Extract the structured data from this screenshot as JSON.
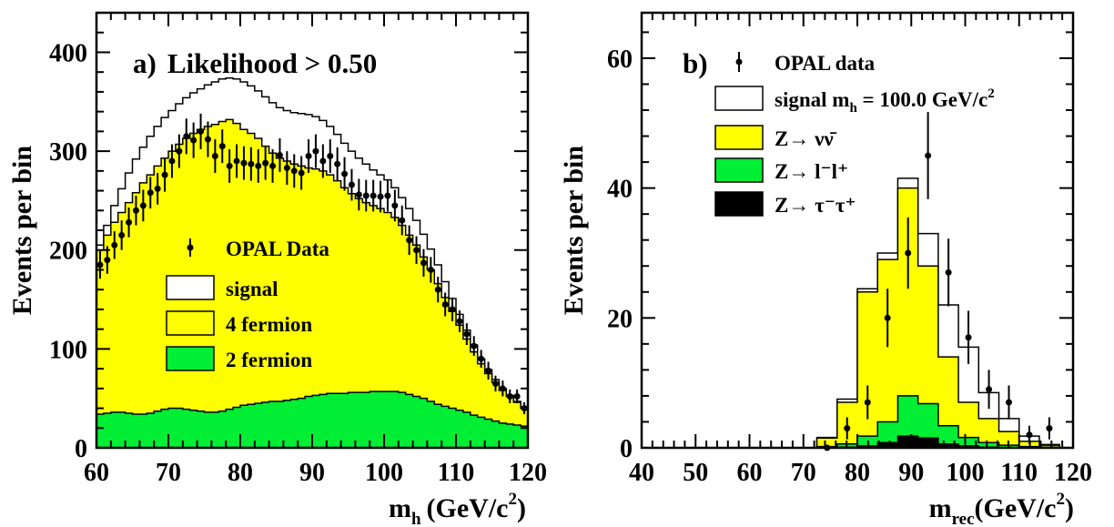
{
  "chart_data": [
    {
      "type": "histogram",
      "panel_label": "a)",
      "title": "Likelihood > 0.50",
      "xlabel": "m",
      "xlabel_sub": "h",
      "xlabel_unit": "(GeV/c",
      "xlabel_sup": "2",
      "xlabel_close": ")",
      "ylabel": "Events per bin",
      "xlim": [
        60,
        120
      ],
      "ylim": [
        0,
        440
      ],
      "xticks": [
        60,
        70,
        80,
        90,
        100,
        110,
        120
      ],
      "xtick_labels": [
        "60",
        "70",
        "80",
        "90",
        "100",
        "110",
        "120"
      ],
      "yticks": [
        0,
        100,
        200,
        300,
        400
      ],
      "ytick_labels": [
        "0",
        "100",
        "200",
        "300",
        "400"
      ],
      "legend": {
        "placement": "center-left",
        "data_label": "OPAL Data",
        "entries": [
          {
            "label": "signal",
            "color": "#ffffff"
          },
          {
            "label": "4 fermion",
            "color": "#ffff00"
          },
          {
            "label": "2 fermion",
            "color": "#00ee33"
          }
        ]
      },
      "bin_edges_x": [
        60,
        61,
        62,
        63,
        64,
        65,
        66,
        67,
        68,
        69,
        70,
        71,
        72,
        73,
        74,
        75,
        76,
        77,
        78,
        79,
        80,
        81,
        82,
        83,
        84,
        85,
        86,
        87,
        88,
        89,
        90,
        91,
        92,
        93,
        94,
        95,
        96,
        97,
        98,
        99,
        100,
        101,
        102,
        103,
        104,
        105,
        106,
        107,
        108,
        109,
        110,
        111,
        112,
        113,
        114,
        115,
        116,
        117,
        118,
        119,
        120
      ],
      "series": [
        {
          "name": "2 fermion",
          "style": "filled-step",
          "color": "#00ee33",
          "values": [
            34,
            35,
            36,
            36,
            35,
            34,
            34,
            35,
            37,
            39,
            40,
            40,
            39,
            38,
            37,
            36,
            36,
            37,
            39,
            41,
            43,
            44,
            45,
            46,
            47,
            47,
            48,
            49,
            50,
            52,
            53,
            54,
            55,
            55,
            55,
            56,
            56,
            56,
            57,
            57,
            57,
            57,
            56,
            54,
            52,
            50,
            47,
            44,
            42,
            40,
            38,
            36,
            33,
            31,
            29,
            27,
            25,
            24,
            23,
            22
          ]
        },
        {
          "name": "4 fermion",
          "style": "filled-step-cumulative",
          "color": "#ffff00",
          "values": [
            200,
            215,
            228,
            238,
            248,
            258,
            268,
            276,
            285,
            293,
            300,
            307,
            313,
            318,
            322,
            325,
            327,
            330,
            332,
            328,
            322,
            318,
            313,
            305,
            298,
            293,
            290,
            287,
            285,
            283,
            282,
            280,
            276,
            270,
            263,
            257,
            252,
            248,
            245,
            242,
            238,
            233,
            225,
            215,
            205,
            193,
            180,
            166,
            152,
            138,
            124,
            110,
            97,
            85,
            75,
            66,
            58,
            52,
            46,
            40
          ]
        },
        {
          "name": "signal",
          "style": "open-step-cumulative",
          "color": "#ffffff",
          "values": [
            205,
            225,
            245,
            262,
            278,
            292,
            304,
            315,
            325,
            334,
            341,
            348,
            354,
            359,
            363,
            367,
            370,
            373,
            374,
            373,
            370,
            366,
            361,
            355,
            349,
            344,
            341,
            339,
            338,
            337,
            335,
            331,
            325,
            317,
            308,
            300,
            293,
            287,
            281,
            276,
            271,
            263,
            253,
            242,
            230,
            216,
            201,
            185,
            168,
            151,
            135,
            119,
            104,
            90,
            79,
            69,
            60,
            53,
            47,
            41
          ]
        }
      ],
      "data_points": {
        "name": "OPAL Data",
        "x": [
          60.5,
          61.5,
          62.5,
          63.5,
          64.5,
          65.5,
          66.5,
          67.5,
          68.5,
          69.5,
          70.5,
          71.5,
          72.5,
          73.5,
          74.5,
          75.5,
          76.5,
          77.5,
          78.5,
          79.5,
          80.5,
          81.5,
          82.5,
          83.5,
          84.5,
          85.5,
          86.5,
          87.5,
          88.5,
          89.5,
          90.5,
          91.5,
          92.5,
          93.5,
          94.5,
          95.5,
          96.5,
          97.5,
          98.5,
          99.5,
          100.5,
          101.5,
          102.5,
          103.5,
          104.5,
          105.5,
          106.5,
          107.5,
          108.5,
          109.5,
          110.5,
          111.5,
          112.5,
          113.5,
          114.5,
          115.5,
          116.5,
          117.5,
          118.5,
          119.5
        ],
        "y": [
          185,
          190,
          205,
          215,
          228,
          240,
          245,
          258,
          262,
          276,
          290,
          300,
          315,
          311,
          320,
          312,
          295,
          305,
          285,
          290,
          288,
          287,
          285,
          288,
          285,
          296,
          283,
          280,
          278,
          295,
          300,
          290,
          295,
          287,
          277,
          266,
          256,
          255,
          255,
          254,
          255,
          245,
          230,
          210,
          200,
          187,
          180,
          160,
          145,
          140,
          128,
          115,
          103,
          90,
          78,
          65,
          60,
          52,
          52,
          40
        ],
        "yerr": [
          14,
          14,
          14,
          15,
          15,
          15,
          16,
          16,
          16,
          17,
          17,
          17,
          18,
          18,
          18,
          18,
          17,
          17,
          17,
          17,
          17,
          17,
          17,
          17,
          17,
          17,
          17,
          17,
          17,
          17,
          17,
          17,
          17,
          17,
          17,
          16,
          16,
          16,
          16,
          16,
          16,
          16,
          15,
          15,
          14,
          14,
          13,
          13,
          12,
          12,
          11,
          11,
          10,
          9,
          9,
          8,
          8,
          7,
          7,
          6
        ]
      }
    },
    {
      "type": "histogram",
      "panel_label": "b)",
      "title": "",
      "xlabel": "m",
      "xlabel_sub": "rec",
      "xlabel_unit": "(GeV/c",
      "xlabel_sup": "2",
      "xlabel_close": ")",
      "ylabel": "Events per bin",
      "xlim": [
        40,
        120
      ],
      "ylim": [
        0,
        67
      ],
      "xticks": [
        40,
        50,
        60,
        70,
        80,
        90,
        100,
        110,
        120
      ],
      "xtick_labels": [
        "40",
        "50",
        "60",
        "70",
        "80",
        "90",
        "100",
        "110",
        "120"
      ],
      "yticks": [
        0,
        20,
        40,
        60
      ],
      "ytick_labels": [
        "0",
        "20",
        "40",
        "60"
      ],
      "legend": {
        "placement": "top-right",
        "data_label": "OPAL data",
        "entries": [
          {
            "label": "signal m",
            "label_sub": "h",
            "label_rest": " = 100.0 GeV/c",
            "label_sup": "2",
            "color": "#ffffff"
          },
          {
            "label": "Z→ νν̄",
            "color": "#ffff00"
          },
          {
            "label": "Z→ l⁻l⁺",
            "color": "#00ee33"
          },
          {
            "label": "Z→ τ⁻τ⁺",
            "color": "#000000"
          }
        ]
      },
      "bin_edges_x": [
        72.5,
        76.25,
        80,
        83.75,
        87.5,
        91.25,
        95,
        98.75,
        102.5,
        106.25,
        110,
        113.75,
        117.5
      ],
      "series": [
        {
          "name": "Z→ τ⁻τ⁺",
          "style": "filled-step",
          "color": "#000000",
          "values": [
            0.0,
            0.1,
            0.3,
            0.8,
            1.8,
            1.5,
            0.6,
            0.3,
            0.1,
            0.0,
            0.0,
            0.0
          ]
        },
        {
          "name": "Z→ l⁻l⁺",
          "style": "filled-step-cumulative",
          "color": "#00ee33",
          "values": [
            0.2,
            0.6,
            1.8,
            4.0,
            8.0,
            6.8,
            3.4,
            1.6,
            0.8,
            0.4,
            0.2,
            0.1
          ]
        },
        {
          "name": "Z→ νν̄",
          "style": "filled-step-cumulative",
          "color": "#ffff00",
          "values": [
            1.5,
            7.0,
            24.0,
            29.0,
            40.0,
            28.0,
            14.0,
            7.0,
            4.5,
            2.5,
            1.0,
            0.4
          ]
        },
        {
          "name": "signal",
          "style": "open-step-cumulative",
          "color": "#ffffff",
          "values": [
            1.6,
            7.5,
            24.5,
            30.0,
            41.5,
            33.0,
            22.0,
            15.5,
            8.5,
            4.5,
            1.8,
            0.5
          ]
        }
      ],
      "data_points": {
        "name": "OPAL data",
        "x": [
          74.4,
          78.1,
          81.9,
          85.6,
          89.4,
          93.1,
          96.9,
          100.6,
          104.4,
          108.1,
          111.9,
          115.6
        ],
        "y": [
          0,
          3,
          7,
          20,
          30,
          45,
          27,
          17,
          9,
          7,
          2,
          3
        ],
        "yerr": [
          0,
          1.7,
          2.6,
          4.5,
          5.5,
          6.7,
          5.2,
          4.1,
          3.0,
          2.6,
          1.4,
          1.7
        ]
      }
    }
  ]
}
